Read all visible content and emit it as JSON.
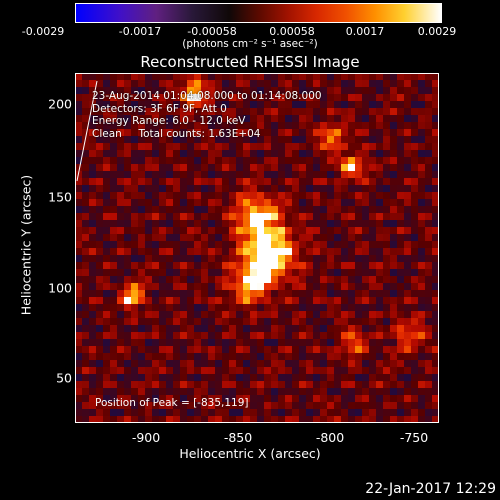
{
  "colorbar": {
    "tick_labels": [
      "-0.0029",
      "-0.0017",
      "-0.00058",
      "0.00058",
      "0.0017",
      "0.0029"
    ],
    "unit_label": "(photons cm⁻² s⁻¹ asec⁻²)"
  },
  "title": "Reconstructed RHESSI Image",
  "info_lines": [
    "23-Aug-2014 01:04:08.000 to 01:14:08.000",
    "Detectors: 3F 6F 9F, Att 0",
    "Energy Range: 6.0 - 12.0 keV",
    "Clean     Total counts: 1.63E+04"
  ],
  "peak_label": "Position of Peak = [-835,119]",
  "axes": {
    "xlabel": "Heliocentric X (arcsec)",
    "ylabel": "Heliocentric Y (arcsec)",
    "x_ticks": [
      "-900",
      "-850",
      "-800",
      "-750"
    ],
    "y_ticks": [
      "200",
      "150",
      "100",
      "50"
    ],
    "x_range": [
      -937,
      -742
    ],
    "y_range": [
      24,
      218
    ]
  },
  "footer_timestamp": "22-Jan-2017 12:29",
  "peak": {
    "x": -835,
    "y": 119
  }
}
